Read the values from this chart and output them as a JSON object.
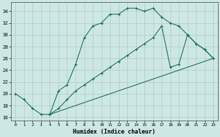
{
  "xlabel": "Humidex (Indice chaleur)",
  "xlim": [
    -0.5,
    23.5
  ],
  "ylim": [
    15.5,
    35.5
  ],
  "xticks": [
    0,
    1,
    2,
    3,
    4,
    5,
    6,
    7,
    8,
    9,
    10,
    11,
    12,
    13,
    14,
    15,
    16,
    17,
    18,
    19,
    20,
    21,
    22,
    23
  ],
  "yticks": [
    16,
    18,
    20,
    22,
    24,
    26,
    28,
    30,
    32,
    34
  ],
  "bg_color": "#cde8e4",
  "line_color": "#1a6b5a",
  "curve1_x": [
    0,
    1,
    2,
    3,
    4,
    5,
    6,
    7,
    8,
    9,
    10,
    11,
    12,
    13,
    14,
    15,
    16,
    17,
    18,
    19,
    20,
    21,
    22,
    23
  ],
  "curve1_y": [
    20,
    19,
    17.5,
    16.5,
    16.5,
    20.5,
    21.5,
    25.0,
    29.5,
    31.5,
    32.0,
    33.5,
    33.5,
    34.5,
    34.5,
    34.0,
    34.5,
    33.0,
    32.0,
    31.5,
    30.0,
    28.5,
    27.5,
    26.0
  ],
  "curve2_x": [
    4,
    5,
    6,
    7,
    8,
    9,
    10,
    11,
    12,
    13,
    14,
    15,
    16,
    17,
    18,
    19,
    20,
    21,
    22,
    23
  ],
  "curve2_y": [
    16.5,
    17.5,
    19.0,
    20.5,
    21.5,
    22.5,
    23.5,
    24.5,
    25.5,
    26.5,
    27.5,
    28.5,
    29.5,
    31.5,
    24.5,
    25.0,
    30.0,
    28.5,
    27.5,
    26.0
  ],
  "line3_x": [
    4,
    23
  ],
  "line3_y": [
    16.5,
    26.0
  ]
}
